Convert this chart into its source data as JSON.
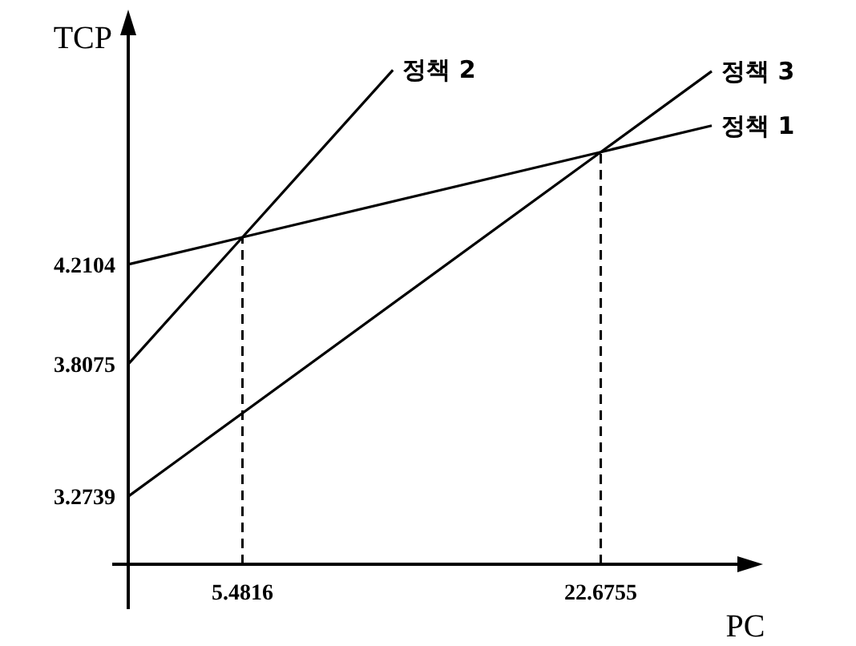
{
  "chart_data": {
    "type": "line",
    "xlabel": "PC",
    "ylabel": "TCP",
    "xlim": [
      0,
      30
    ],
    "ylim": [
      3.0,
      5.2
    ],
    "xticks": [
      5.4816,
      22.6755
    ],
    "yticks": [
      3.2739,
      3.8075,
      4.2104
    ],
    "ref_lines": [
      {
        "axis": "x",
        "value": 5.4816,
        "line_style": "dashed"
      },
      {
        "axis": "x",
        "value": 22.6755,
        "line_style": "dashed"
      }
    ],
    "series": [
      {
        "name": "정책 1",
        "color": "#000000",
        "x": [
          0,
          5.4816,
          22.6755,
          28
        ],
        "values": [
          4.2104,
          4.32,
          4.6639,
          4.7704
        ]
      },
      {
        "name": "정책 2",
        "color": "#000000",
        "x": [
          0,
          5.4816,
          12.7
        ],
        "values": [
          3.8075,
          4.32,
          4.995
        ]
      },
      {
        "name": "정책 3",
        "color": "#000000",
        "x": [
          0,
          22.6755,
          28
        ],
        "values": [
          3.2739,
          4.6639,
          4.99
        ]
      }
    ]
  }
}
